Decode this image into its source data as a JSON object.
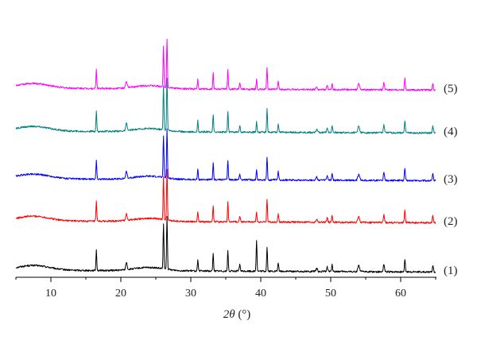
{
  "chart_data": {
    "type": "line",
    "title": "",
    "xlabel": {
      "italic": "2θ",
      "unit": " (°)"
    },
    "ylabel": "",
    "xlim": [
      5,
      65
    ],
    "xticks": [
      10,
      20,
      30,
      40,
      50,
      60
    ],
    "grid": false,
    "legend": "none",
    "series": [
      {
        "label": "(1)",
        "color": "#000000",
        "offset": 0
      },
      {
        "label": "(2)",
        "color": "#ff0000",
        "offset": 1
      },
      {
        "label": "(3)",
        "color": "#0000ff",
        "offset": 2
      },
      {
        "label": "(4)",
        "color": "#008080",
        "offset": 3
      },
      {
        "label": "(5)",
        "color": "#ff00ff",
        "offset": 4
      }
    ],
    "peaks_2theta": [
      16.5,
      20.8,
      26.1,
      26.6,
      31.0,
      33.2,
      35.3,
      37.0,
      39.4,
      40.9,
      42.5,
      49.5,
      50.2,
      54.0,
      57.6,
      60.6,
      64.6
    ]
  }
}
